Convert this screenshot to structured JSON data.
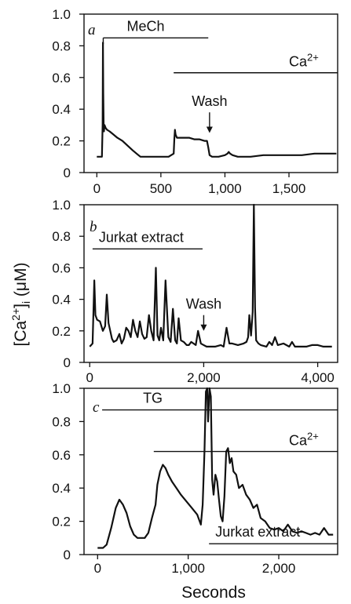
{
  "figure": {
    "ylabel_main": "[Ca",
    "ylabel_sup": "2+",
    "ylabel_tail": "]",
    "ylabel_sub": "i",
    "ylabel_unit": " (μM)",
    "xlabel": "Seconds"
  },
  "chart_data": [
    {
      "type": "line",
      "panel_label": "a",
      "xlim": [
        -100,
        1880
      ],
      "ylim": [
        0,
        1.0
      ],
      "xticks": [
        0,
        500,
        1000,
        1500
      ],
      "xtick_labels": [
        "0",
        "500",
        "1,000",
        "1,500"
      ],
      "yticks": [
        0,
        0.2,
        0.4,
        0.6,
        0.8,
        1.0
      ],
      "ytick_labels": [
        "0",
        "0.2",
        "0.4",
        "0.6",
        "0.8",
        "1.0"
      ],
      "grid": false,
      "series": [
        {
          "x": [
            0,
            40,
            45,
            48,
            50,
            53,
            56,
            60,
            70,
            80,
            100,
            130,
            160,
            200,
            240,
            280,
            310,
            340,
            370,
            400,
            450,
            500,
            560,
            600,
            605,
            610,
            615,
            625,
            640,
            680,
            720,
            760,
            800,
            840,
            860,
            870,
            880,
            900,
            950,
            1000,
            1020,
            1030,
            1040,
            1060,
            1100,
            1200,
            1300,
            1400,
            1500,
            1600,
            1700,
            1800,
            1870
          ],
          "y": [
            0.1,
            0.1,
            0.3,
            0.82,
            0.5,
            0.3,
            0.26,
            0.3,
            0.28,
            0.27,
            0.26,
            0.24,
            0.22,
            0.2,
            0.17,
            0.14,
            0.12,
            0.1,
            0.1,
            0.1,
            0.1,
            0.1,
            0.1,
            0.12,
            0.21,
            0.27,
            0.24,
            0.22,
            0.22,
            0.22,
            0.22,
            0.21,
            0.21,
            0.2,
            0.2,
            0.16,
            0.11,
            0.1,
            0.1,
            0.11,
            0.12,
            0.13,
            0.12,
            0.11,
            0.1,
            0.1,
            0.11,
            0.11,
            0.11,
            0.11,
            0.12,
            0.12,
            0.12
          ]
        }
      ],
      "bars": [
        {
          "label": "MeCh",
          "x0": 50,
          "x1": 870,
          "y": 0.85,
          "tick_down": true
        },
        {
          "label_main": "Ca",
          "label_sup": "2+",
          "x0": 600,
          "x1": 1880,
          "y": 0.63,
          "tick_down": false
        }
      ],
      "annotations": [
        {
          "label": "Wash",
          "x": 880,
          "arrow_from": 0.38,
          "arrow_to": 0.25
        }
      ]
    },
    {
      "type": "line",
      "panel_label": "b",
      "xlim": [
        -100,
        4350
      ],
      "ylim": [
        0,
        1.0
      ],
      "xticks": [
        0,
        2000,
        4000
      ],
      "xtick_labels": [
        "0",
        "2,000",
        "4,000"
      ],
      "yticks": [
        0,
        0.2,
        0.4,
        0.6,
        0.8,
        1.0
      ],
      "ytick_labels": [
        "0",
        "0.2",
        "0.4",
        "0.6",
        "0.8",
        "1.0"
      ],
      "grid": false,
      "series": [
        {
          "x": [
            0,
            50,
            80,
            100,
            130,
            180,
            230,
            270,
            300,
            330,
            360,
            390,
            420,
            470,
            520,
            560,
            600,
            640,
            680,
            720,
            760,
            800,
            840,
            880,
            920,
            960,
            1000,
            1040,
            1080,
            1120,
            1160,
            1190,
            1220,
            1250,
            1290,
            1330,
            1380,
            1420,
            1460,
            1500,
            1530,
            1560,
            1600,
            1650,
            1700,
            1740,
            1780,
            1820,
            1860,
            1900,
            1950,
            2000,
            2050,
            2100,
            2200,
            2300,
            2350,
            2400,
            2450,
            2500,
            2600,
            2700,
            2750,
            2780,
            2800,
            2830,
            2860,
            2880,
            2900,
            2920,
            2960,
            3000,
            3100,
            3150,
            3200,
            3250,
            3300,
            3400,
            3500,
            3550,
            3600,
            3700,
            3800,
            3900,
            4000,
            4100,
            4200,
            4250
          ],
          "y": [
            0.1,
            0.12,
            0.52,
            0.3,
            0.27,
            0.26,
            0.2,
            0.23,
            0.43,
            0.25,
            0.2,
            0.15,
            0.13,
            0.14,
            0.18,
            0.12,
            0.15,
            0.22,
            0.2,
            0.16,
            0.27,
            0.2,
            0.16,
            0.26,
            0.18,
            0.15,
            0.16,
            0.3,
            0.2,
            0.14,
            0.6,
            0.17,
            0.14,
            0.22,
            0.14,
            0.52,
            0.16,
            0.13,
            0.34,
            0.14,
            0.12,
            0.28,
            0.14,
            0.13,
            0.11,
            0.11,
            0.13,
            0.12,
            0.11,
            0.2,
            0.12,
            0.11,
            0.1,
            0.1,
            0.1,
            0.11,
            0.1,
            0.22,
            0.12,
            0.12,
            0.11,
            0.12,
            0.13,
            0.16,
            0.3,
            0.17,
            0.32,
            1.0,
            0.35,
            0.14,
            0.12,
            0.11,
            0.1,
            0.13,
            0.11,
            0.16,
            0.11,
            0.12,
            0.1,
            0.13,
            0.1,
            0.1,
            0.1,
            0.11,
            0.11,
            0.1,
            0.1,
            0.1
          ]
        }
      ],
      "bars": [
        {
          "label": "Jurkat extract",
          "x0": 50,
          "x1": 1980,
          "y": 0.72,
          "tick_down": false
        }
      ],
      "annotations": [
        {
          "label": "Wash",
          "x": 2000,
          "arrow_from": 0.3,
          "arrow_to": 0.2
        }
      ]
    },
    {
      "type": "line",
      "panel_label": "c",
      "xlim": [
        -150,
        2650
      ],
      "ylim": [
        0,
        1.0
      ],
      "xticks": [
        0,
        1000,
        2000
      ],
      "xtick_labels": [
        "0",
        "1,000",
        "2,000"
      ],
      "yticks": [
        0,
        0.2,
        0.4,
        0.6,
        0.8,
        1.0
      ],
      "ytick_labels": [
        "0",
        "0.2",
        "0.4",
        "0.6",
        "0.8",
        "1.0"
      ],
      "grid": false,
      "series": [
        {
          "x": [
            0,
            60,
            100,
            150,
            200,
            240,
            280,
            320,
            360,
            400,
            440,
            480,
            520,
            560,
            600,
            640,
            660,
            690,
            720,
            750,
            780,
            820,
            870,
            920,
            980,
            1040,
            1100,
            1140,
            1160,
            1180,
            1195,
            1210,
            1220,
            1235,
            1250,
            1265,
            1280,
            1300,
            1320,
            1340,
            1360,
            1380,
            1400,
            1420,
            1440,
            1460,
            1480,
            1500,
            1530,
            1560,
            1600,
            1640,
            1680,
            1720,
            1760,
            1800,
            1850,
            1900,
            1950,
            2000,
            2050,
            2100,
            2150,
            2200,
            2250,
            2300,
            2350,
            2400,
            2450,
            2500,
            2550,
            2600
          ],
          "y": [
            0.04,
            0.04,
            0.06,
            0.16,
            0.28,
            0.33,
            0.3,
            0.25,
            0.17,
            0.12,
            0.1,
            0.1,
            0.1,
            0.13,
            0.22,
            0.3,
            0.42,
            0.5,
            0.54,
            0.52,
            0.48,
            0.44,
            0.4,
            0.36,
            0.32,
            0.28,
            0.24,
            0.18,
            0.3,
            0.62,
            0.98,
            1.0,
            0.8,
            1.0,
            0.95,
            0.45,
            0.36,
            0.48,
            0.44,
            0.33,
            0.23,
            0.2,
            0.35,
            0.62,
            0.64,
            0.55,
            0.58,
            0.5,
            0.48,
            0.4,
            0.42,
            0.36,
            0.33,
            0.28,
            0.3,
            0.22,
            0.2,
            0.16,
            0.15,
            0.16,
            0.14,
            0.18,
            0.14,
            0.13,
            0.14,
            0.13,
            0.12,
            0.13,
            0.12,
            0.16,
            0.12,
            0.12
          ]
        }
      ],
      "bars": [
        {
          "label": "TG",
          "x0": 50,
          "x1": 2650,
          "y": 0.87,
          "tick_down": false
        },
        {
          "label_main": "Ca",
          "label_sup": "2+",
          "x0": 620,
          "x1": 2650,
          "y": 0.62,
          "tick_down": false
        },
        {
          "label": "Jurkat extract",
          "x0": 1230,
          "x1": 2650,
          "y": 0.065,
          "tick_down": false
        }
      ],
      "annotations": []
    }
  ]
}
